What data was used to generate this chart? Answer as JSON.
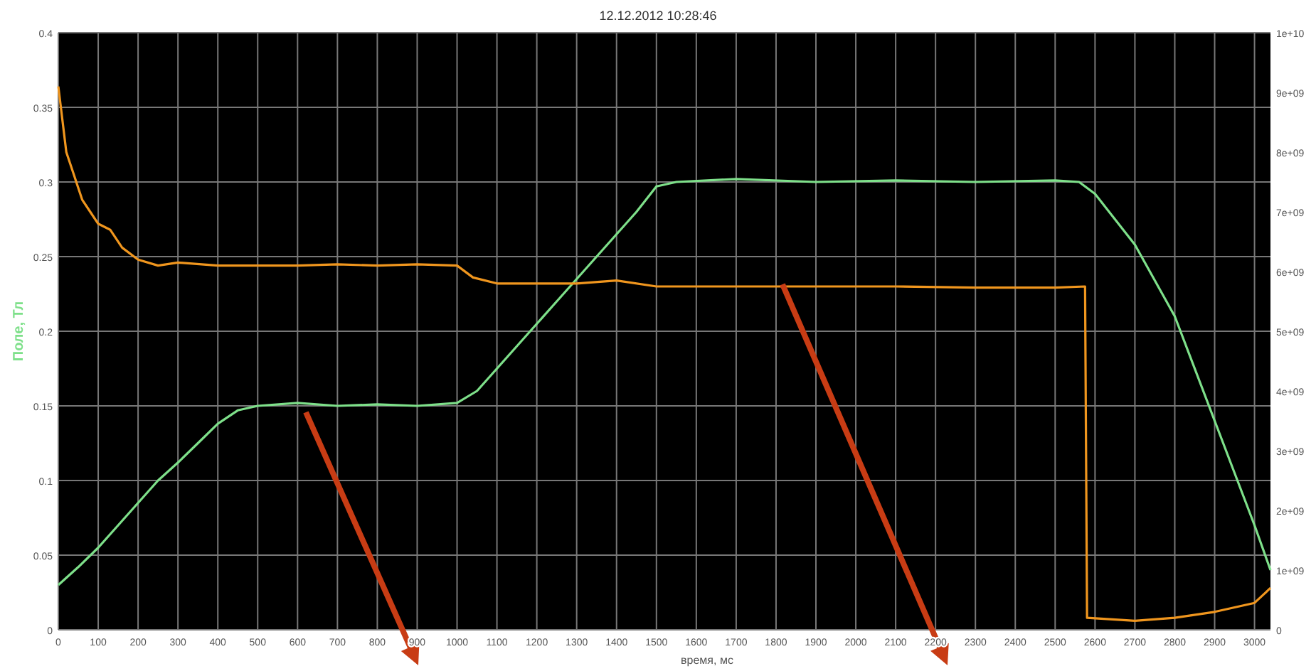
{
  "chart_data": {
    "type": "line",
    "title": "12.12.2012 10:28:46",
    "xlabel": "время, мс",
    "ylabel": "Поле, Тл",
    "xlim": [
      0,
      3040
    ],
    "xticks": [
      0,
      100,
      200,
      300,
      400,
      500,
      600,
      700,
      800,
      900,
      1000,
      1100,
      1200,
      1300,
      1400,
      1500,
      1600,
      1700,
      1800,
      1900,
      2000,
      2100,
      2200,
      2300,
      2400,
      2500,
      2600,
      2700,
      2800,
      2900,
      3000
    ],
    "ylim": [
      0,
      0.4
    ],
    "yticks": [
      0,
      0.05,
      0.1,
      0.15,
      0.2,
      0.25,
      0.3,
      0.35,
      0.4
    ],
    "y2lim": [
      0,
      10000000000
    ],
    "y2ticks": [
      0,
      {
        "value": 1000000000,
        "label": "1e+09"
      },
      {
        "value": 2000000000,
        "label": "2e+09"
      },
      {
        "value": 3000000000,
        "label": "3e+09"
      },
      {
        "value": 4000000000,
        "label": "4e+09"
      },
      {
        "value": 5000000000,
        "label": "5e+09"
      },
      {
        "value": 6000000000,
        "label": "6e+09"
      },
      {
        "value": 7000000000,
        "label": "7e+09"
      },
      {
        "value": 8000000000,
        "label": "8e+09"
      },
      {
        "value": 9000000000,
        "label": "9e+09"
      },
      {
        "value": 10000000000,
        "label": "1e+10"
      }
    ],
    "grid": true,
    "series": [
      {
        "color": "#7ee08a",
        "x": [
          0,
          50,
          100,
          150,
          200,
          250,
          300,
          350,
          400,
          450,
          500,
          600,
          700,
          800,
          900,
          1000,
          1050,
          1100,
          1150,
          1200,
          1250,
          1300,
          1350,
          1400,
          1450,
          1500,
          1550,
          1700,
          1900,
          2100,
          2300,
          2500,
          2560,
          2600,
          2700,
          2800,
          2900,
          3000,
          3040
        ],
        "values": [
          0.03,
          0.042,
          0.055,
          0.07,
          0.085,
          0.1,
          0.112,
          0.125,
          0.138,
          0.147,
          0.15,
          0.152,
          0.15,
          0.151,
          0.15,
          0.152,
          0.16,
          0.175,
          0.19,
          0.205,
          0.22,
          0.235,
          0.25,
          0.265,
          0.28,
          0.297,
          0.3,
          0.302,
          0.3,
          0.301,
          0.3,
          0.301,
          0.3,
          0.292,
          0.258,
          0.21,
          0.14,
          0.07,
          0.04
        ]
      },
      {
        "color": "#f0961e",
        "axis": "y2",
        "x": [
          0,
          20,
          40,
          60,
          80,
          100,
          130,
          160,
          200,
          250,
          300,
          400,
          500,
          600,
          700,
          800,
          900,
          1000,
          1040,
          1100,
          1300,
          1400,
          1500,
          1700,
          1900,
          2100,
          2300,
          2500,
          2575,
          2580,
          2700,
          2800,
          2900,
          3000,
          3040
        ],
        "values": [
          9100000000,
          8000000000,
          7600000000,
          7200000000,
          7000000000,
          6800000000,
          6700000000,
          6400000000,
          6200000000,
          6100000000,
          6150000000,
          6100000000,
          6100000000,
          6100000000,
          6120000000,
          6100000000,
          6120000000,
          6100000000,
          5900000000,
          5800000000,
          5800000000,
          5850000000,
          5750000000,
          5750000000,
          5750000000,
          5750000000,
          5730000000,
          5730000000,
          5750000000,
          200000000,
          150000000,
          200000000,
          300000000,
          450000000,
          700000000
        ]
      }
    ]
  }
}
